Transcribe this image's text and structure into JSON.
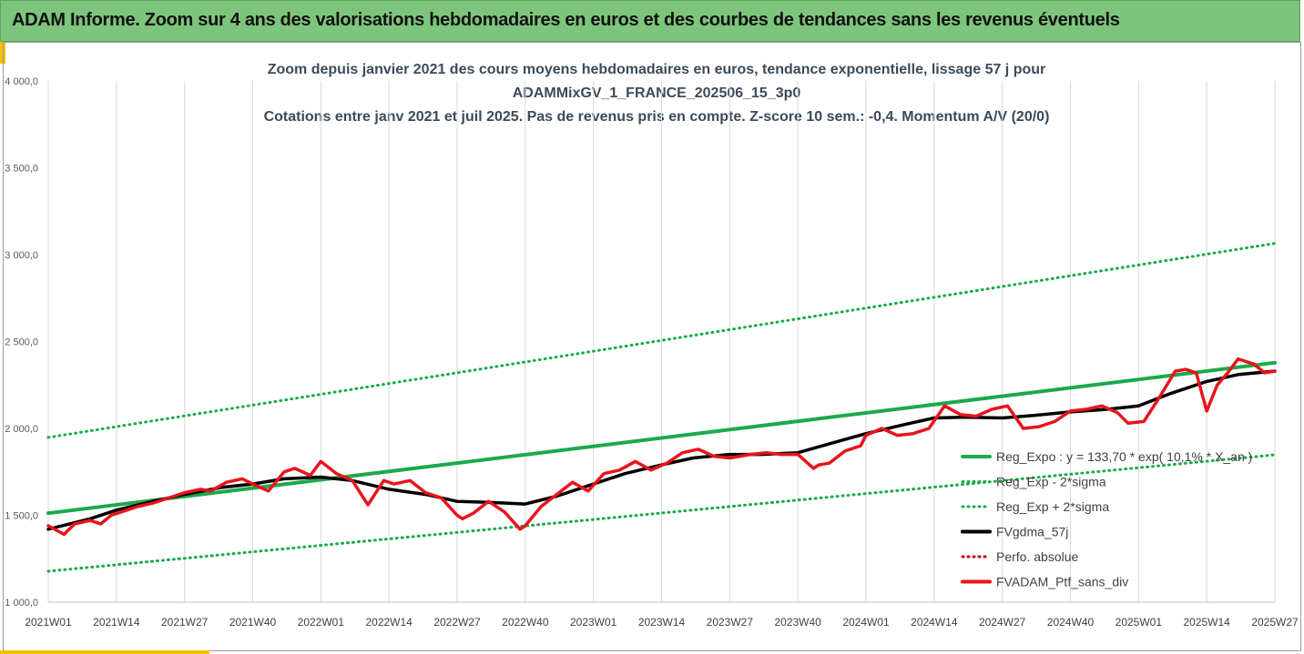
{
  "banner": {
    "title": "ADAM Informe. Zoom sur 4 ans des valorisations hebdomadaires en euros et des courbes de tendances sans les revenus éventuels"
  },
  "colors": {
    "banner_bg": "#7dc57d",
    "accent": "#f2c200",
    "trend_green": "#1aaa4a",
    "smooth_black": "#000000",
    "price_red": "#e8141c",
    "perf_dark_red": "#c00000"
  },
  "chart_data": {
    "type": "line",
    "title_lines": [
      "Zoom depuis janvier 2021 des cours moyens hebdomadaires  en euros, tendance exponentielle, lissage 57 j pour",
      "ADAMMixGV_1_FRANCE_202506_15_3p0",
      "Cotations entre janv 2021 et juil 2025. Pas de revenus pris en compte. Z-score 10 sem.: -0,4. Momentum A/V (20/0)"
    ],
    "ylim": [
      1000,
      4000
    ],
    "y_ticks": [
      "1 000,0",
      "1 500,0",
      "2 000,0",
      "2 500,0",
      "3 000,0",
      "3 500,0",
      "4 000,0"
    ],
    "grid": "vertical",
    "x_ticks": [
      "2021W01",
      "2021W14",
      "2021W27",
      "2021W40",
      "2022W01",
      "2022W14",
      "2022W27",
      "2022W40",
      "2023W01",
      "2023W14",
      "2023W27",
      "2023W40",
      "2024W01",
      "2024W14",
      "2024W27",
      "2024W40",
      "2025W01",
      "2025W14",
      "2025W27"
    ],
    "x_tick_weeks": [
      0,
      13,
      26,
      39,
      52,
      65,
      78,
      91,
      104,
      117,
      130,
      143,
      156,
      169,
      182,
      195,
      208,
      221,
      234
    ],
    "legend_position": "right",
    "series": [
      {
        "name": "Reg_Expo : y = 133,70 * exp( 10,1% * X_an )",
        "style": "solid",
        "color": "#1aaa4a",
        "x": [
          0,
          234
        ],
        "y": [
          1512,
          2378
        ]
      },
      {
        "name": "Reg_Exp - 2*sigma",
        "style": "dotted",
        "color": "#1aaa4a",
        "x": [
          0,
          234
        ],
        "y": [
          1178,
          1848
        ]
      },
      {
        "name": "Reg_Exp + 2*sigma",
        "style": "dotted",
        "color": "#1aaa4a",
        "x": [
          0,
          234
        ],
        "y": [
          1948,
          3065
        ]
      },
      {
        "name": "FVgdma_57j",
        "style": "solid",
        "color": "#000000",
        "x": [
          0,
          8,
          13,
          20,
          26,
          33,
          39,
          45,
          52,
          58,
          65,
          72,
          78,
          84,
          91,
          97,
          104,
          110,
          117,
          123,
          130,
          136,
          143,
          150,
          156,
          163,
          169,
          175,
          182,
          188,
          195,
          202,
          208,
          214,
          221,
          227,
          234
        ],
        "y": [
          1420,
          1480,
          1530,
          1580,
          1620,
          1660,
          1680,
          1710,
          1720,
          1700,
          1650,
          1620,
          1580,
          1575,
          1565,
          1610,
          1680,
          1740,
          1790,
          1830,
          1850,
          1850,
          1860,
          1920,
          1970,
          2020,
          2060,
          2065,
          2060,
          2075,
          2095,
          2110,
          2130,
          2200,
          2270,
          2310,
          2330
        ]
      },
      {
        "name": "Perfo. absolue",
        "style": "dotted",
        "color": "#c00000",
        "x": [],
        "y": []
      },
      {
        "name": "FVADAM_Ptf_sans_div",
        "style": "solid",
        "color": "#e8141c",
        "x": [
          0,
          3,
          5,
          8,
          10,
          12,
          15,
          17,
          20,
          23,
          26,
          29,
          31,
          34,
          37,
          39,
          42,
          45,
          47,
          50,
          52,
          55,
          58,
          61,
          64,
          66,
          69,
          72,
          75,
          78,
          79,
          81,
          84,
          87,
          90,
          91,
          94,
          97,
          100,
          103,
          106,
          109,
          112,
          115,
          118,
          121,
          124,
          127,
          130,
          134,
          137,
          140,
          143,
          146,
          147,
          149,
          152,
          155,
          156,
          159,
          162,
          165,
          168,
          171,
          174,
          177,
          180,
          183,
          186,
          189,
          192,
          195,
          198,
          201,
          204,
          206,
          209,
          212,
          215,
          217,
          219,
          221,
          223,
          225,
          227,
          230,
          232,
          234
        ],
        "y": [
          1440,
          1390,
          1450,
          1470,
          1450,
          1500,
          1530,
          1550,
          1570,
          1600,
          1630,
          1650,
          1640,
          1690,
          1710,
          1680,
          1640,
          1750,
          1770,
          1730,
          1810,
          1740,
          1700,
          1560,
          1700,
          1680,
          1700,
          1630,
          1600,
          1500,
          1480,
          1510,
          1580,
          1520,
          1420,
          1440,
          1550,
          1620,
          1690,
          1640,
          1740,
          1760,
          1810,
          1760,
          1800,
          1860,
          1880,
          1840,
          1830,
          1850,
          1860,
          1850,
          1850,
          1770,
          1790,
          1800,
          1870,
          1900,
          1960,
          2000,
          1960,
          1970,
          2000,
          2130,
          2080,
          2070,
          2110,
          2130,
          2000,
          2010,
          2040,
          2100,
          2110,
          2130,
          2090,
          2030,
          2040,
          2180,
          2330,
          2340,
          2320,
          2100,
          2250,
          2320,
          2400,
          2370,
          2320,
          2330
        ]
      }
    ]
  }
}
